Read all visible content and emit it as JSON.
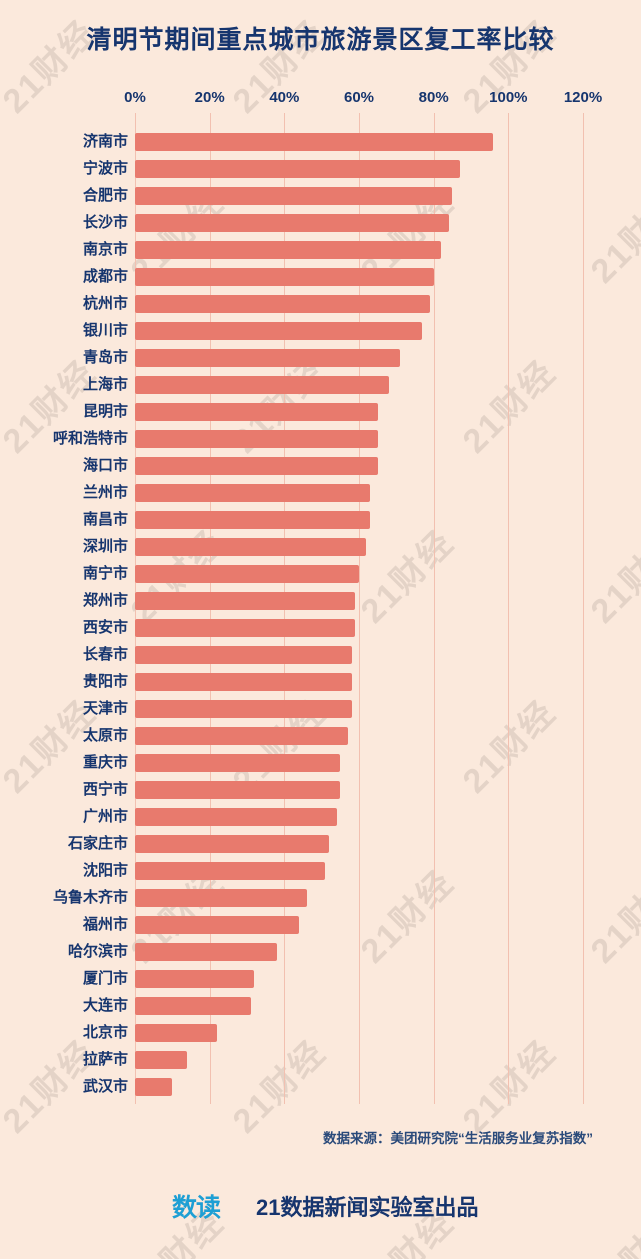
{
  "title": "清明节期间重点城市旅游景区复工率比较",
  "watermark_text": "21财经",
  "source_note": "数据来源：美团研究院“生活服务业复苏指数”",
  "footer": {
    "logo_text": "数读",
    "credit": "21数据新闻实验室出品"
  },
  "colors": {
    "background": "#fbe9dc",
    "text_navy": "#16356e",
    "bar": "#e87a6d",
    "gridline": "#f2c0b0",
    "watermark": "#8d8078"
  },
  "chart_data": {
    "type": "bar",
    "orientation": "horizontal",
    "title": "清明节期间重点城市旅游景区复工率比较",
    "xlabel": "",
    "ylabel": "",
    "unit": "%",
    "xlim": [
      0,
      120
    ],
    "x_tick_values": [
      0,
      20,
      40,
      60,
      80,
      100,
      120
    ],
    "x_tick_labels": [
      "0%",
      "20%",
      "40%",
      "60%",
      "80%",
      "100%",
      "120%"
    ],
    "grid": true,
    "legend": false,
    "bar_color": "#e87a6d",
    "categories": [
      "济南市",
      "宁波市",
      "合肥市",
      "长沙市",
      "南京市",
      "成都市",
      "杭州市",
      "银川市",
      "青岛市",
      "上海市",
      "昆明市",
      "呼和浩特市",
      "海口市",
      "兰州市",
      "南昌市",
      "深圳市",
      "南宁市",
      "郑州市",
      "西安市",
      "长春市",
      "贵阳市",
      "天津市",
      "太原市",
      "重庆市",
      "西宁市",
      "广州市",
      "石家庄市",
      "沈阳市",
      "乌鲁木齐市",
      "福州市",
      "哈尔滨市",
      "厦门市",
      "大连市",
      "北京市",
      "拉萨市",
      "武汉市"
    ],
    "values": [
      96,
      87,
      85,
      84,
      82,
      80,
      79,
      77,
      71,
      68,
      65,
      65,
      65,
      63,
      63,
      62,
      60,
      59,
      59,
      58,
      58,
      58,
      57,
      55,
      55,
      54,
      52,
      51,
      46,
      44,
      38,
      32,
      31,
      22,
      14,
      10
    ]
  }
}
